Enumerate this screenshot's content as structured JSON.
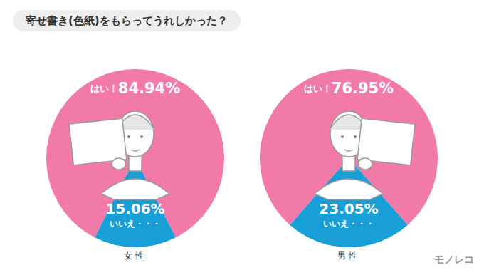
{
  "title": "寄せ書き(色紙)をもらってうれしかった？",
  "logo": "モノレコ",
  "chart_data": [
    {
      "type": "pie",
      "title": "女性",
      "categories": [
        "はい！",
        "いいえ・・・"
      ],
      "values": [
        84.94,
        15.06
      ],
      "value_labels": [
        "84.94%",
        "15.06%"
      ],
      "colors": [
        "#f17aa8",
        "#189fd7"
      ],
      "data_labels": true
    },
    {
      "type": "pie",
      "title": "男性",
      "categories": [
        "はい！",
        "いいえ・・・"
      ],
      "values": [
        76.95,
        23.05
      ],
      "value_labels": [
        "76.95%",
        "23.05%"
      ],
      "colors": [
        "#f17aa8",
        "#189fd7"
      ],
      "data_labels": true
    }
  ]
}
